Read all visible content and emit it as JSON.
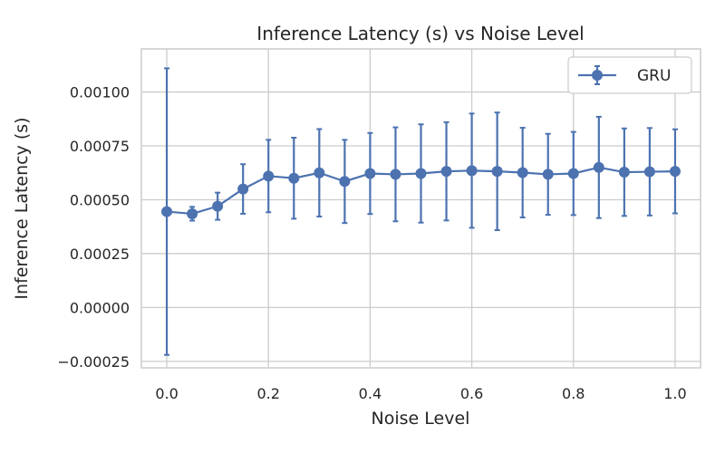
{
  "chart_data": {
    "type": "line",
    "title": "Inference Latency (s) vs Noise Level",
    "xlabel": "Noise Level",
    "ylabel": "Inference Latency (s)",
    "xlim": [
      -0.05,
      1.05
    ],
    "ylim": [
      -0.00028,
      0.0012
    ],
    "xticks": [
      0.0,
      0.2,
      0.4,
      0.6,
      0.8,
      1.0
    ],
    "xtick_labels": [
      "0.0",
      "0.2",
      "0.4",
      "0.6",
      "0.8",
      "1.0"
    ],
    "yticks": [
      -0.00025,
      0.0,
      0.00025,
      0.0005,
      0.00075,
      0.001
    ],
    "ytick_labels": [
      "−0.00025",
      "0.00000",
      "0.00025",
      "0.00050",
      "0.00075",
      "0.00100"
    ],
    "grid": true,
    "legend_position": "top-right",
    "series": [
      {
        "name": "GRU",
        "color": "#4c72b0",
        "marker": "circle",
        "x": [
          0.0,
          0.05,
          0.1,
          0.15,
          0.2,
          0.25,
          0.3,
          0.35,
          0.4,
          0.45,
          0.5,
          0.55,
          0.6,
          0.65,
          0.7,
          0.75,
          0.8,
          0.85,
          0.9,
          0.95,
          1.0
        ],
        "y": [
          0.000445,
          0.000435,
          0.00047,
          0.00055,
          0.00061,
          0.0006,
          0.000625,
          0.000585,
          0.000622,
          0.000618,
          0.000622,
          0.000632,
          0.000635,
          0.000632,
          0.000626,
          0.000618,
          0.000622,
          0.00065,
          0.000628,
          0.00063,
          0.000632
        ],
        "yerr": [
          0.000665,
          3.2e-05,
          6.3e-05,
          0.000115,
          0.000168,
          0.000188,
          0.000203,
          0.000193,
          0.000188,
          0.000218,
          0.000228,
          0.000228,
          0.000265,
          0.000273,
          0.000208,
          0.000188,
          0.000193,
          0.000235,
          0.000203,
          0.000203,
          0.000195
        ]
      }
    ]
  }
}
